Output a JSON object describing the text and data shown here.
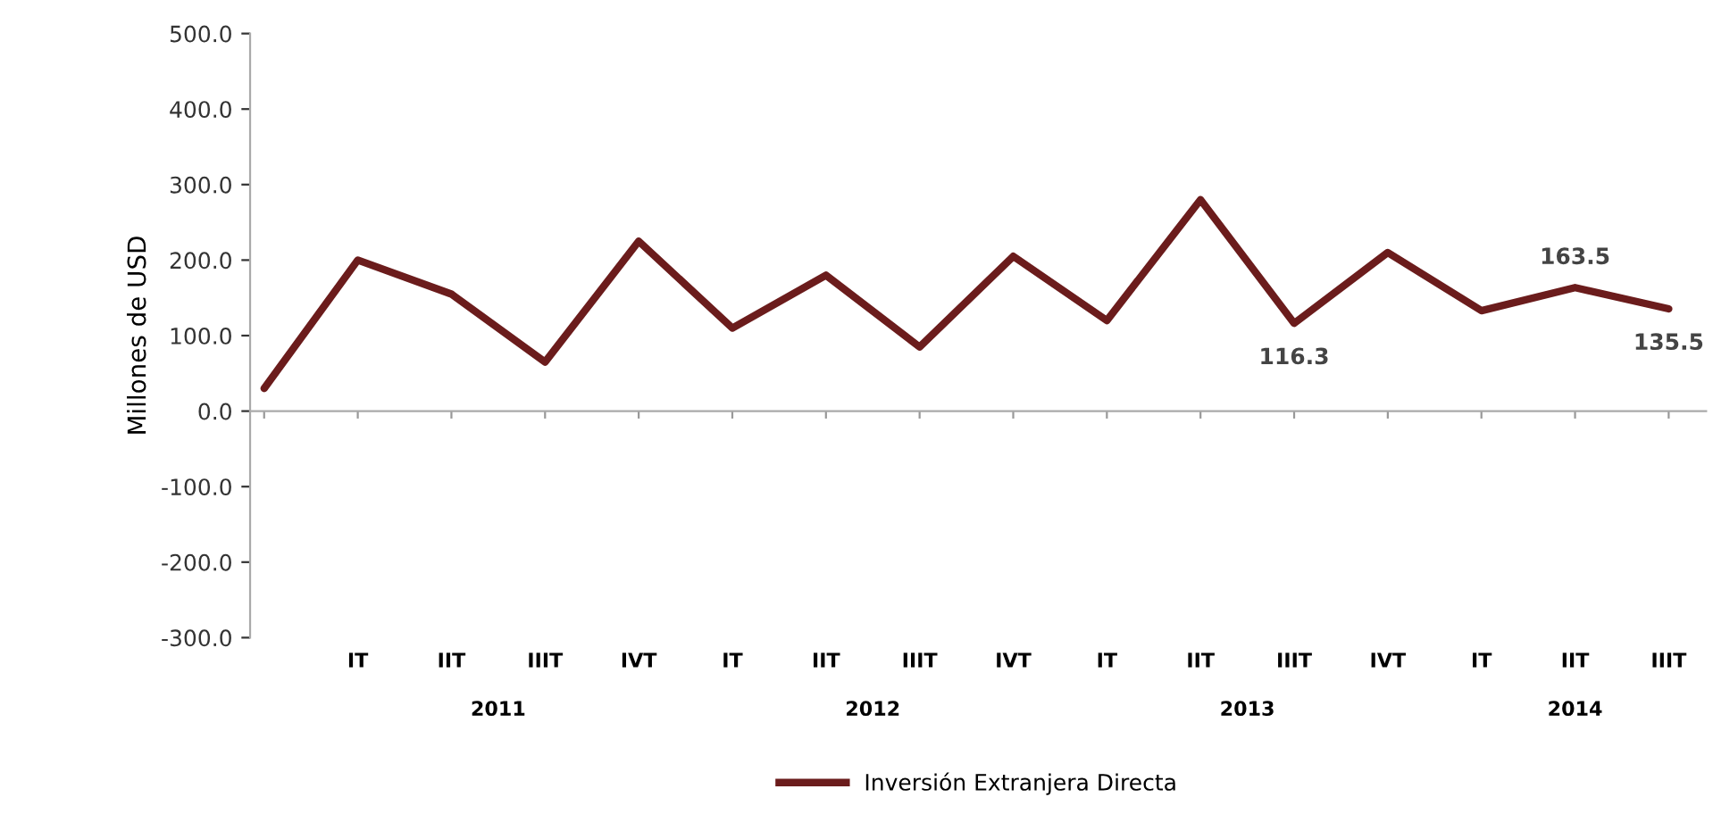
{
  "chart_data": {
    "type": "line",
    "ylabel": "Millones de USD",
    "categories": [
      null,
      "IT",
      "IIT",
      "IIIT",
      "IVT",
      "IT",
      "IIT",
      "IIIT",
      "IVT",
      "IT",
      "IIT",
      "IIIT",
      "IVT",
      "IT",
      "IIT",
      "IIIT"
    ],
    "series": [
      {
        "name": "Inversión Extranjera Directa",
        "color": "#6b1c1c",
        "values": [
          30,
          200,
          155,
          65,
          225,
          110,
          180,
          85,
          205,
          120,
          280,
          116.3,
          210,
          133,
          163.5,
          135.5
        ],
        "value_labels": [
          null,
          null,
          null,
          null,
          null,
          null,
          null,
          null,
          null,
          null,
          null,
          "116.3",
          null,
          null,
          "163.5",
          "135.5"
        ]
      }
    ],
    "ylim": [
      -300,
      500
    ],
    "yticks": [
      {
        "value": -300,
        "label": "-300.0"
      },
      {
        "value": -200,
        "label": "-200.0"
      },
      {
        "value": -100,
        "label": "-100.0"
      },
      {
        "value": 0,
        "label": "0.0"
      },
      {
        "value": 100,
        "label": "100.0"
      },
      {
        "value": 200,
        "label": "200.0"
      },
      {
        "value": 300,
        "label": "300.0"
      },
      {
        "value": 400,
        "label": "400.0"
      },
      {
        "value": 500,
        "label": "500.0"
      }
    ],
    "annotations": [
      "2011",
      "2012",
      "2013",
      "2014"
    ],
    "legend": "bottom",
    "marker": "none",
    "line_style": "solid"
  }
}
